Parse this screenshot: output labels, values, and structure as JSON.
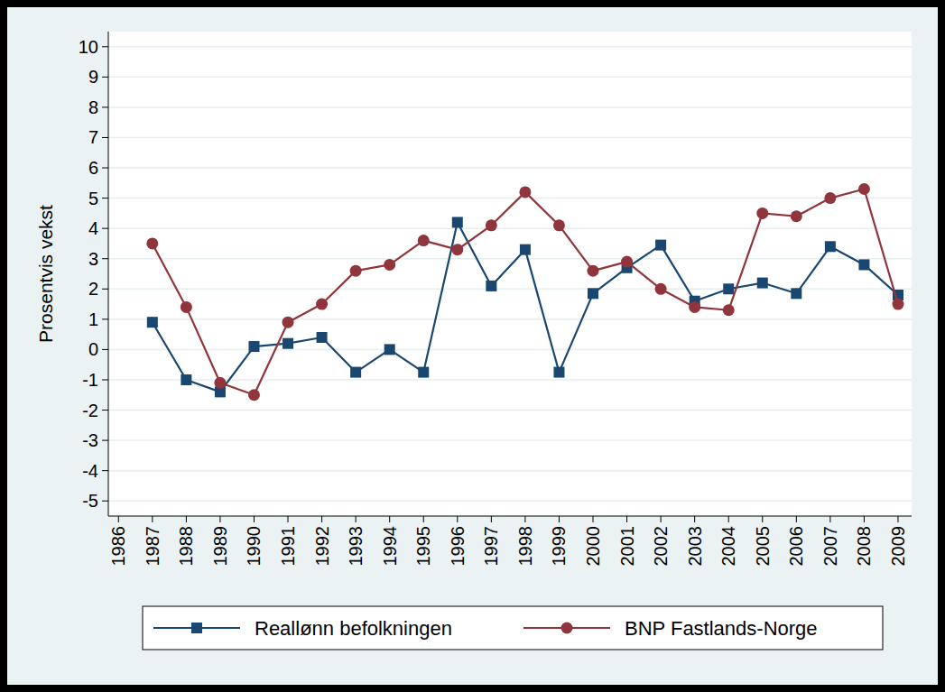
{
  "chart_data": {
    "type": "line",
    "y_label": "Prosentvis vekst",
    "x": [
      1987,
      1988,
      1989,
      1990,
      1991,
      1992,
      1993,
      1994,
      1995,
      1996,
      1997,
      1998,
      1999,
      2000,
      2001,
      2002,
      2003,
      2004,
      2005,
      2006,
      2007,
      2008,
      2009
    ],
    "series": [
      {
        "name": "Reallønn befolkningen",
        "color": "#1a476f",
        "marker": "square",
        "values": [
          0.9,
          -1.0,
          -1.4,
          0.1,
          0.2,
          0.4,
          -0.75,
          0.0,
          -0.75,
          4.2,
          2.1,
          3.3,
          -0.75,
          1.85,
          2.7,
          3.45,
          1.6,
          2.0,
          2.2,
          1.85,
          3.4,
          2.8,
          1.8
        ]
      },
      {
        "name": "BNP Fastlands-Norge",
        "color": "#90353b",
        "marker": "circle",
        "values": [
          3.5,
          1.4,
          -1.1,
          -1.5,
          0.9,
          1.5,
          2.6,
          2.8,
          3.6,
          3.3,
          4.1,
          5.2,
          4.1,
          2.6,
          2.9,
          2.0,
          1.4,
          1.3,
          4.5,
          4.4,
          5.0,
          5.3,
          1.5
        ]
      }
    ],
    "xlim": [
      1985.7,
      2009.4
    ],
    "xticks": [
      1986,
      1987,
      1988,
      1989,
      1990,
      1991,
      1992,
      1993,
      1994,
      1995,
      1996,
      1997,
      1998,
      1999,
      2000,
      2001,
      2002,
      2003,
      2004,
      2005,
      2006,
      2007,
      2008,
      2009
    ],
    "ylim": [
      -5.5,
      10.5
    ],
    "yticks": [
      -5,
      -4,
      -3,
      -2,
      -1,
      0,
      1,
      2,
      3,
      4,
      5,
      6,
      7,
      8,
      9,
      10
    ],
    "grid": true,
    "legend": "bottom"
  }
}
